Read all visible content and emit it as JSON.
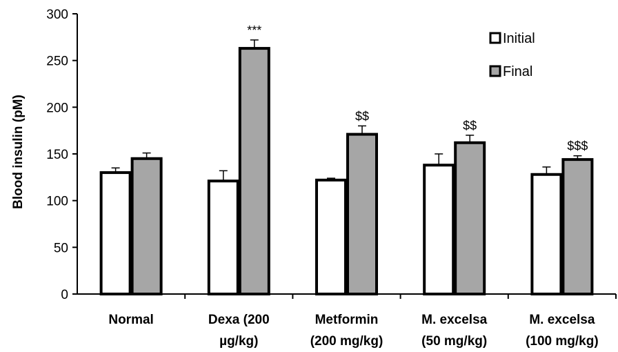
{
  "chart_data": {
    "type": "bar",
    "ylabel": "Blood insulin (pM)",
    "ylim": [
      0,
      300
    ],
    "yticks": [
      0,
      50,
      100,
      150,
      200,
      250,
      300
    ],
    "categories": [
      [
        "Normal"
      ],
      [
        "Dexa (200",
        "µg/kg)"
      ],
      [
        "Metformin",
        "(200 mg/kg)"
      ],
      [
        "M. excelsa",
        "(50 mg/kg)"
      ],
      [
        "M. excelsa",
        "(100 mg/kg)"
      ]
    ],
    "series": [
      {
        "name": "Initial",
        "color": "#ffffff",
        "values": [
          130,
          121,
          122,
          138,
          128
        ],
        "errors": [
          5,
          11,
          2,
          12,
          8
        ]
      },
      {
        "name": "Final",
        "color": "#a6a6a6",
        "values": [
          145,
          263,
          171,
          162,
          144
        ],
        "errors": [
          6,
          9,
          9,
          8,
          4
        ]
      }
    ],
    "annotations": [
      "",
      "***",
      "$$",
      "$$",
      "$$$"
    ],
    "legend": "top-right",
    "grid": false
  }
}
